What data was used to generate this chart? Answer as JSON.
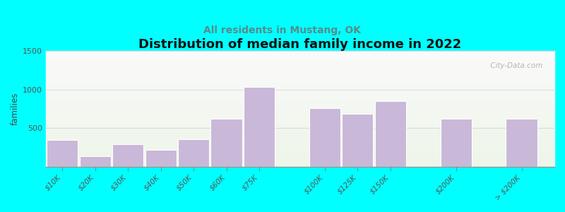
{
  "title": "Distribution of median family income in 2022",
  "subtitle": "All residents in Mustang, OK",
  "ylabel": "families",
  "categories": [
    "$10K",
    "$20K",
    "$30K",
    "$40K",
    "$50K",
    "$60K",
    "$75K",
    "$100K",
    "$125K",
    "$150K",
    "$200K",
    "> $200K"
  ],
  "values": [
    340,
    130,
    290,
    220,
    350,
    615,
    1030,
    760,
    680,
    850,
    620,
    620
  ],
  "bar_color": "#c9b8d8",
  "bar_edge_color": "#ffffff",
  "ylim": [
    0,
    1500
  ],
  "yticks": [
    0,
    500,
    1000,
    1500
  ],
  "background_color": "#00ffff",
  "title_fontsize": 13,
  "subtitle_fontsize": 10,
  "subtitle_color": "#5a8a8a",
  "watermark": " City-Data.com",
  "watermark_color": "#aaaaaa"
}
